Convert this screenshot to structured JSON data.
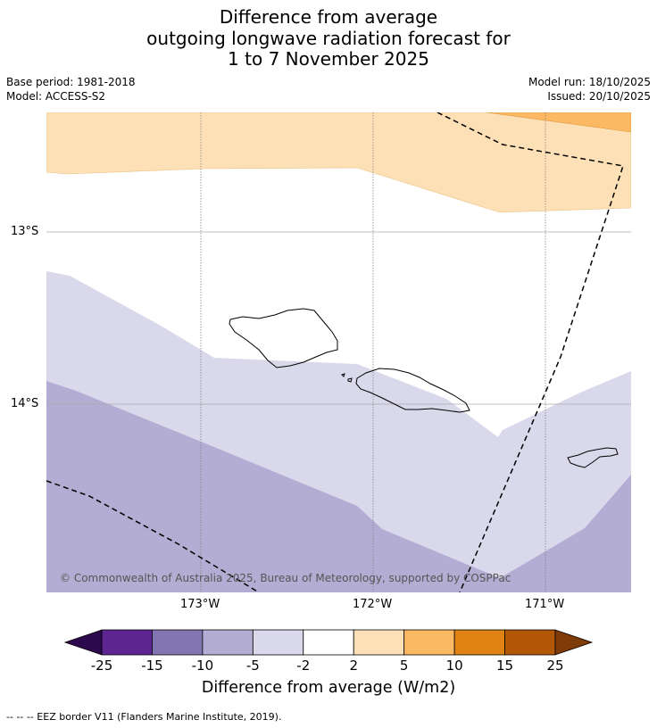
{
  "title": {
    "line1": "Difference from average",
    "line2": "outgoing longwave radiation forecast for",
    "line3": "1 to 7 November 2025"
  },
  "meta": {
    "base_period": "Base period: 1981-2018",
    "model": "Model: ACCESS-S2",
    "model_run": "Model run: 18/10/2025",
    "issued": "Issued: 20/10/2025"
  },
  "map": {
    "latitude_labels": [
      "13°S",
      "14°S"
    ],
    "longitude_labels": [
      "173°W",
      "172°W",
      "171°W"
    ],
    "copyright": "© Commonwealth of Australia 2025, Bureau of Meteorology, supported by COSPPac"
  },
  "colorbar": {
    "title": "Difference from average (W/m2)",
    "tick_labels": [
      "-25",
      "-15",
      "-10",
      "-5",
      "-2",
      "2",
      "5",
      "10",
      "15",
      "25"
    ],
    "colors": {
      "under": "#2d0a4e",
      "bins": [
        "#5c2590",
        "#8275b2",
        "#b3acd3",
        "#d9d9eb",
        "#ffffff",
        "#fee0b6",
        "#fdb863",
        "#e08214",
        "#b35806"
      ],
      "over": "#7f3b08"
    }
  },
  "map_colors": {
    "band_2_to_5": "#fee0b6",
    "band_5_to_10": "#fdb863",
    "band_neg5_to_neg2": "#d9d9eb",
    "band_neg10_to_neg5": "#b3acd3"
  },
  "footer": "--  --  -- EEZ border V11 (Flanders Marine Institute, 2019)."
}
